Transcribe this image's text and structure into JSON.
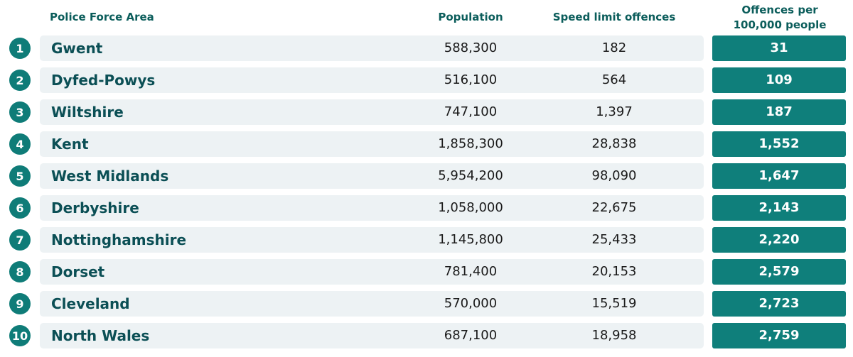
{
  "table": {
    "header": [
      "Police Force Area",
      "Population",
      "Speed limit offences",
      "Offences per 100,000 people"
    ],
    "rows": [
      [
        "1",
        "Gwent",
        "588,300",
        "182",
        "31"
      ],
      [
        "2",
        "Dyfed-Powys",
        "516,100",
        "564",
        "109"
      ],
      [
        "3",
        "Wiltshire",
        "747,100",
        "1,397",
        "187"
      ],
      [
        "4",
        "Kent",
        "1,858,300",
        "28,838",
        "1,552"
      ],
      [
        "5",
        "West Midlands",
        "5,954,200",
        "98,090",
        "1,647"
      ],
      [
        "6",
        "Derbyshire",
        "1,058,000",
        "22,675",
        "2,143"
      ],
      [
        "7",
        "Nottinghamshire",
        "1,145,800",
        "25,433",
        "2,220"
      ],
      [
        "8",
        "Dorset",
        "781,400",
        "20,153",
        "2,579"
      ],
      [
        "9",
        "Cleveland",
        "570,000",
        "15,519",
        "2,723"
      ],
      [
        "10",
        "North Wales",
        "687,100",
        "18,958",
        "2,759"
      ]
    ]
  }
}
